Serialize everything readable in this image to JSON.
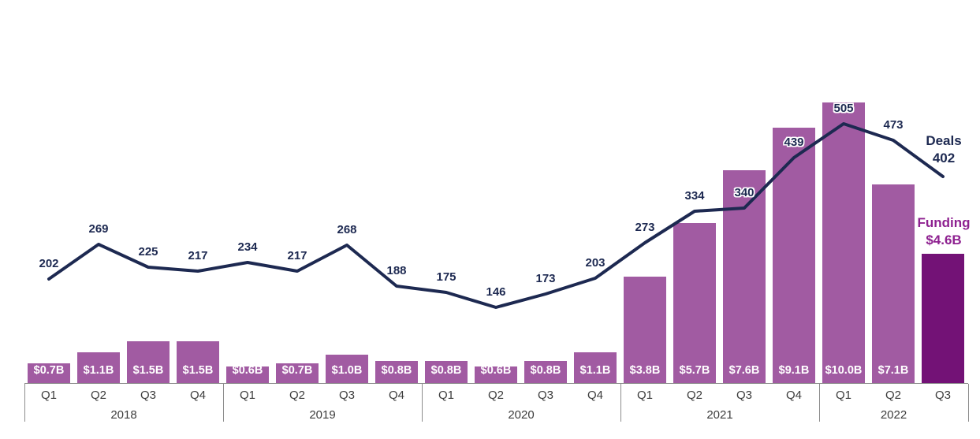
{
  "chart_data": {
    "type": "combo-bar-line",
    "title": "",
    "categories": [
      "Q1",
      "Q2",
      "Q3",
      "Q4",
      "Q1",
      "Q2",
      "Q3",
      "Q4",
      "Q1",
      "Q2",
      "Q3",
      "Q4",
      "Q1",
      "Q2",
      "Q3",
      "Q4",
      "Q1",
      "Q2",
      "Q3"
    ],
    "year_groups": [
      {
        "label": "2018",
        "quarters": 4
      },
      {
        "label": "2019",
        "quarters": 4
      },
      {
        "label": "2020",
        "quarters": 4
      },
      {
        "label": "2021",
        "quarters": 4
      },
      {
        "label": "2022",
        "quarters": 3
      }
    ],
    "series": [
      {
        "name": "Funding",
        "type": "bar",
        "unit": "$B",
        "values": [
          0.7,
          1.1,
          1.5,
          1.5,
          0.6,
          0.7,
          1.0,
          0.8,
          0.8,
          0.6,
          0.8,
          1.1,
          3.8,
          5.7,
          7.6,
          9.1,
          10.0,
          7.1,
          4.6
        ],
        "bar_labels": [
          "$0.7B",
          "$1.1B",
          "$1.5B",
          "$1.5B",
          "$0.6B",
          "$0.7B",
          "$1.0B",
          "$0.8B",
          "$0.8B",
          "$0.6B",
          "$0.8B",
          "$1.1B",
          "$3.8B",
          "$5.7B",
          "$7.6B",
          "$9.1B",
          "$10.0B",
          "$7.1B",
          ""
        ]
      },
      {
        "name": "Deals",
        "type": "line",
        "values": [
          202,
          269,
          225,
          217,
          234,
          217,
          268,
          188,
          175,
          146,
          173,
          203,
          273,
          334,
          340,
          439,
          505,
          473,
          402
        ],
        "point_labels": [
          "202",
          "269",
          "225",
          "217",
          "234",
          "217",
          "268",
          "188",
          "175",
          "146",
          "173",
          "203",
          "273",
          "334",
          "340",
          "439",
          "505",
          "473",
          ""
        ]
      }
    ],
    "annotations": {
      "deals": {
        "line1": "Deals",
        "line2": "402"
      },
      "funding": {
        "line1": "Funding",
        "line2": "$4.6B"
      }
    },
    "highlight_index": 18,
    "axes": {
      "x_grouping": "quarters nested under years",
      "bar_axis_range_billions": [
        0,
        10
      ],
      "line_axis_range_deals": [
        0,
        505
      ],
      "gridlines": false,
      "legend": "inline annotations at right"
    },
    "colors": {
      "bar": "#A15BA2",
      "bar_highlight": "#731276",
      "line": "#1D2951",
      "deals_text": "#1D2951",
      "funding_text": "#8E2190",
      "axis_line": "#8C8C8C",
      "tick_text": "#3C3C3C",
      "bar_value_text": "#FFFFFF",
      "background": "#FFFFFF"
    }
  }
}
